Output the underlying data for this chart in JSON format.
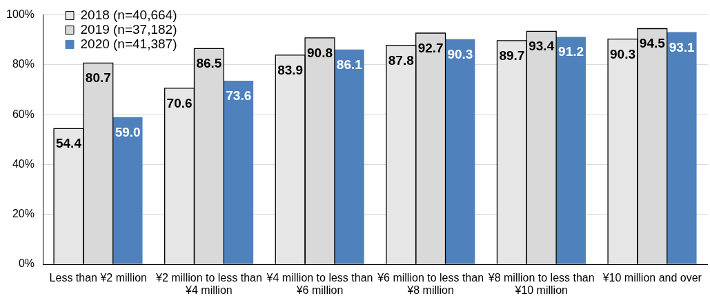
{
  "chart_data": {
    "type": "bar",
    "categories": [
      "Less than ¥2 million",
      "¥2 million to less than ¥4 million",
      "¥4 million to less than ¥6 million",
      "¥6 million to less than ¥8 million",
      "¥8 million to less than ¥10 million",
      "¥10 million and over"
    ],
    "series": [
      {
        "name": "2018 (n=40,664)",
        "color": "#e6e6e6",
        "values": [
          54.4,
          70.6,
          83.9,
          87.8,
          89.7,
          90.3
        ],
        "value_labels": [
          "54.4",
          "70.6",
          "83.9",
          "87.8",
          "89.7",
          "90.3"
        ]
      },
      {
        "name": "2019 (n=37,182)",
        "color": "#d9d9d9",
        "values": [
          80.7,
          86.5,
          90.8,
          92.7,
          93.4,
          94.5
        ],
        "value_labels": [
          "80.7",
          "86.5",
          "90.8",
          "92.7",
          "93.4",
          "94.5"
        ]
      },
      {
        "name": "2020 (n=41,387)",
        "color": "#4f81bd",
        "values": [
          59.0,
          73.6,
          86.1,
          90.3,
          91.2,
          93.1
        ],
        "value_labels": [
          "59.0",
          "73.6",
          "86.1",
          "90.3",
          "91.2",
          "93.1"
        ]
      }
    ],
    "ylim": [
      0,
      100
    ],
    "yticks": [
      {
        "value": 0,
        "label": "0%"
      },
      {
        "value": 20,
        "label": "20%"
      },
      {
        "value": 40,
        "label": "40%"
      },
      {
        "value": 60,
        "label": "60%"
      },
      {
        "value": 80,
        "label": "80%"
      },
      {
        "value": 100,
        "label": "100%"
      }
    ],
    "grid": "y",
    "legend": "top left"
  }
}
